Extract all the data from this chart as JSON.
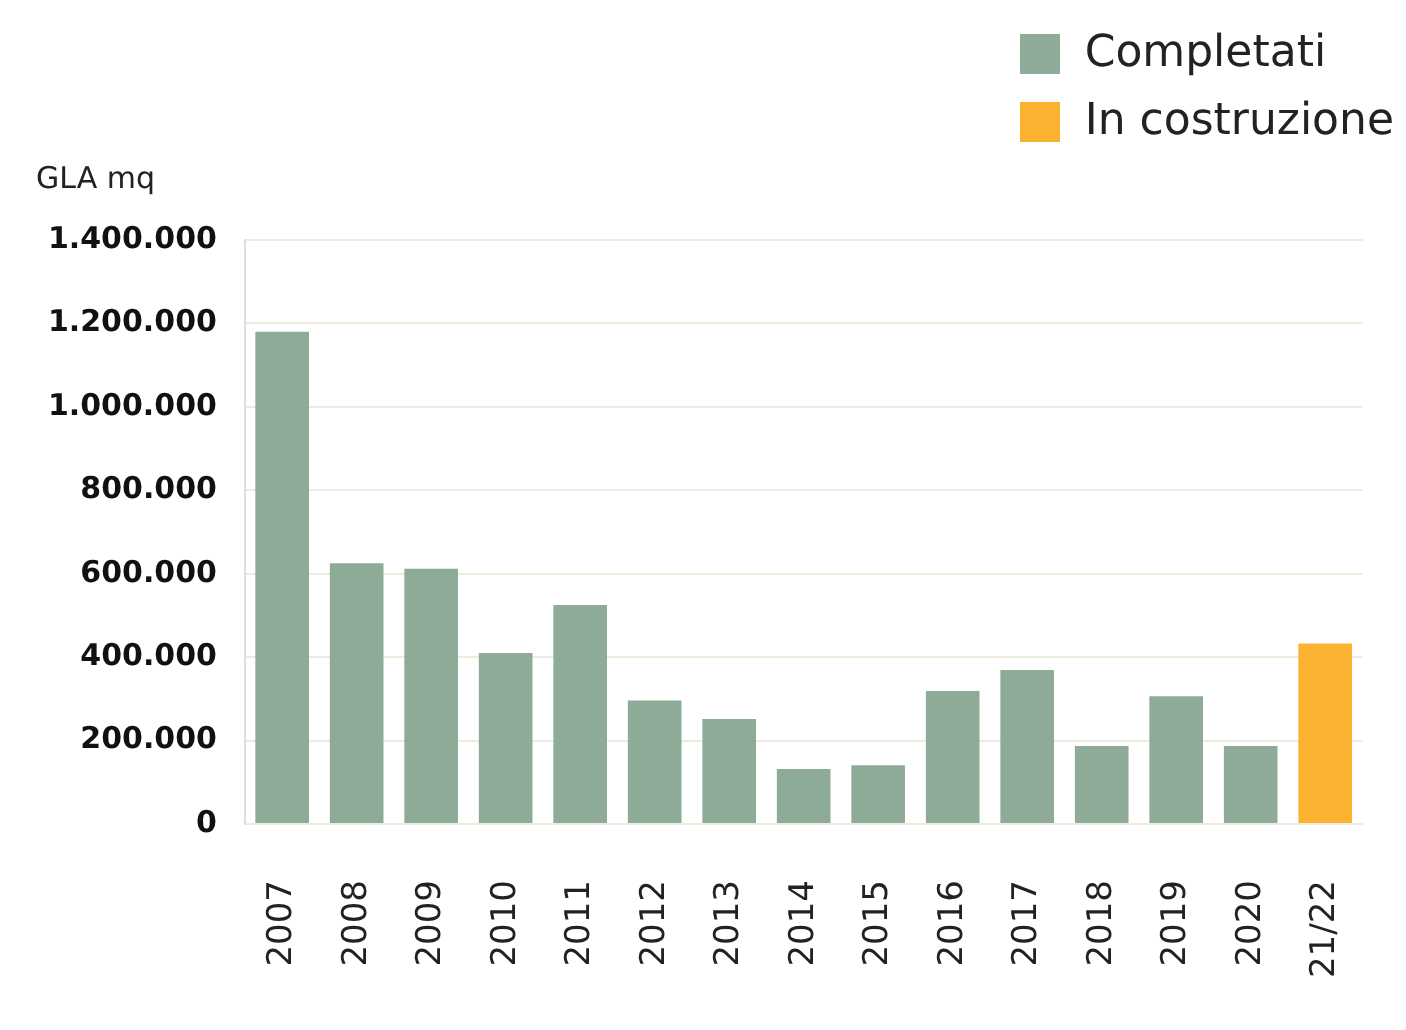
{
  "chart_data": {
    "type": "bar",
    "ylabel": "GLA mq",
    "categories": [
      "2007",
      "2008",
      "2009",
      "2010",
      "2011",
      "2012",
      "2013",
      "2014",
      "2015",
      "2016",
      "2017",
      "2018",
      "2019",
      "2020",
      "21/22"
    ],
    "series": [
      {
        "name": "Completati",
        "color": "#8eab97",
        "values": [
          1180000,
          625000,
          612000,
          410000,
          525000,
          296000,
          252000,
          132000,
          141000,
          319000,
          369000,
          187000,
          306000,
          187000,
          null
        ]
      },
      {
        "name": "In costruzione",
        "color": "#fbb231",
        "values": [
          null,
          null,
          null,
          null,
          null,
          null,
          null,
          null,
          null,
          null,
          null,
          null,
          null,
          null,
          433000
        ]
      }
    ],
    "ylim": [
      0,
      1400000
    ],
    "yticks": [
      {
        "value": 0,
        "label": "0"
      },
      {
        "value": 200000,
        "label": "200.000"
      },
      {
        "value": 400000,
        "label": "400.000"
      },
      {
        "value": 600000,
        "label": "600.000"
      },
      {
        "value": 800000,
        "label": "800.000"
      },
      {
        "value": 1000000,
        "label": "1.000.000"
      },
      {
        "value": 1200000,
        "label": "1.200.000"
      },
      {
        "value": 1400000,
        "label": "1.400.000"
      }
    ],
    "grid": "y",
    "legend": "top right"
  }
}
